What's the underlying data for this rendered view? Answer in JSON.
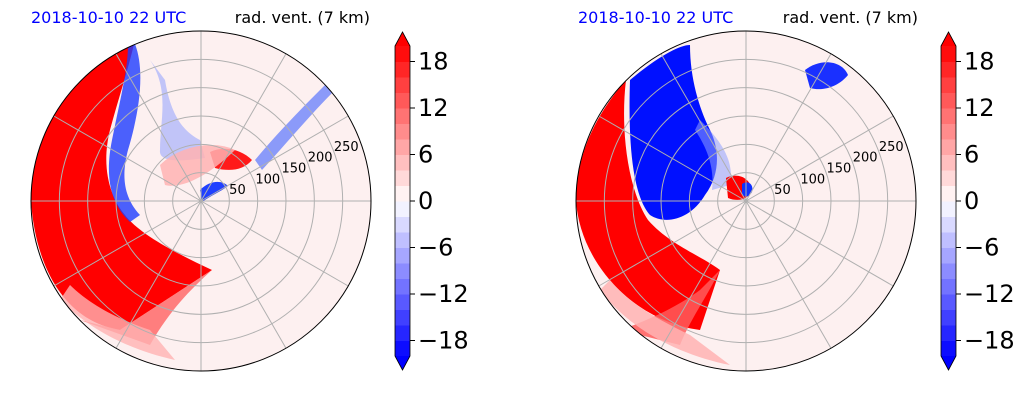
{
  "chart_data": [
    {
      "type": "heatmap",
      "projection": "polar",
      "title_left": "2018-10-10 22 UTC",
      "title_right": "rad. vent. (7 km)",
      "radial_ticks": [
        50,
        100,
        150,
        200,
        250
      ],
      "radial_range": [
        0,
        300
      ],
      "angular_gridlines_deg": [
        0,
        30,
        60,
        90,
        120,
        150,
        180,
        210,
        240,
        270,
        300,
        330
      ],
      "grid": true,
      "colorbar": {
        "ticks": [
          "18",
          "12",
          "6",
          "0",
          "−6",
          "−12",
          "−18"
        ],
        "tick_values": [
          18,
          12,
          6,
          0,
          -6,
          -12,
          -18
        ],
        "range": [
          -20,
          20
        ],
        "extend": "both",
        "colormap": "bwr"
      }
    },
    {
      "type": "heatmap",
      "projection": "polar",
      "title_left": "2018-10-10 22 UTC",
      "title_right": "rad. vent. (7 km)",
      "radial_ticks": [
        50,
        100,
        150,
        200,
        250
      ],
      "radial_range": [
        0,
        300
      ],
      "angular_gridlines_deg": [
        0,
        30,
        60,
        90,
        120,
        150,
        180,
        210,
        240,
        270,
        300,
        330
      ],
      "grid": true,
      "colorbar": {
        "ticks": [
          "18",
          "12",
          "6",
          "0",
          "−6",
          "−12",
          "−18"
        ],
        "tick_values": [
          18,
          12,
          6,
          0,
          -6,
          -12,
          -18
        ],
        "range": [
          -20,
          20
        ],
        "extend": "both",
        "colormap": "bwr"
      }
    }
  ],
  "colors": {
    "positive": "#ff0000",
    "negative": "#0000ff",
    "zero": "#ffffff",
    "title_date": "#0000ff",
    "grid": "#b0b0b0"
  }
}
